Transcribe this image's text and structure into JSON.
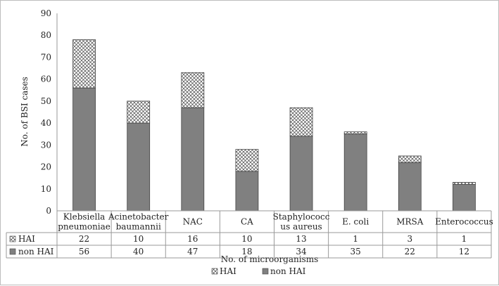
{
  "chart_data": {
    "type": "bar",
    "stacked": true,
    "ylim": [
      0,
      90
    ],
    "yticks": [
      0,
      10,
      20,
      30,
      40,
      50,
      60,
      70,
      80,
      90
    ],
    "ylabel": "No. of BSI cases",
    "xlabel": "No. of microorganisms",
    "grid": false,
    "legend_position": "bottom",
    "categories": [
      [
        "Klebsiella",
        "pneumoniae"
      ],
      [
        "Acinetobacter",
        "baumannii"
      ],
      [
        "NAC"
      ],
      [
        "CA"
      ],
      [
        "Staphylococc",
        "us aureus"
      ],
      [
        "E. coli"
      ],
      [
        "MRSA"
      ],
      [
        "Enterococcus"
      ]
    ],
    "series": [
      {
        "name": "non HAI",
        "values": [
          56,
          40,
          47,
          18,
          34,
          35,
          22,
          12
        ],
        "color": "#808080",
        "pattern": "solid"
      },
      {
        "name": "HAI",
        "values": [
          22,
          10,
          16,
          10,
          13,
          1,
          3,
          1
        ],
        "color": "#ffffff",
        "pattern": "crosshatch"
      }
    ],
    "table_rows": [
      "HAI",
      "non HAI"
    ],
    "legend": [
      "HAI",
      "non HAI"
    ]
  }
}
